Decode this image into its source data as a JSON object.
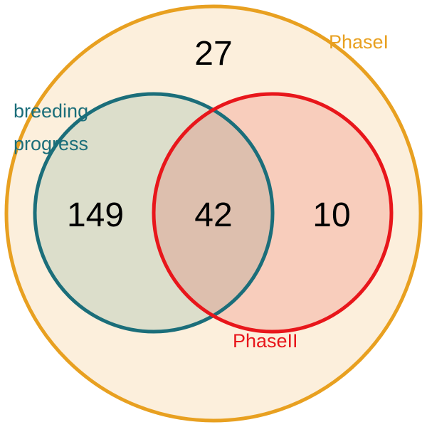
{
  "sets": {
    "phase1": {
      "label": "PhaseI",
      "color": "#E8A020",
      "fill": "#FCEFDC"
    },
    "breeding": {
      "label_lines": [
        "breeding",
        "progress"
      ],
      "color": "#1B6E7A",
      "fill": "#DCDECB"
    },
    "phase2": {
      "label": "PhaseII",
      "color": "#E8161B",
      "fill": "#F8CDBC"
    }
  },
  "overlap_fill": "#DDBFAE",
  "regions": {
    "phase1_only": "27",
    "breeding_only": "149",
    "breeding_and_phase2": "42",
    "phase2_only": "10"
  }
}
